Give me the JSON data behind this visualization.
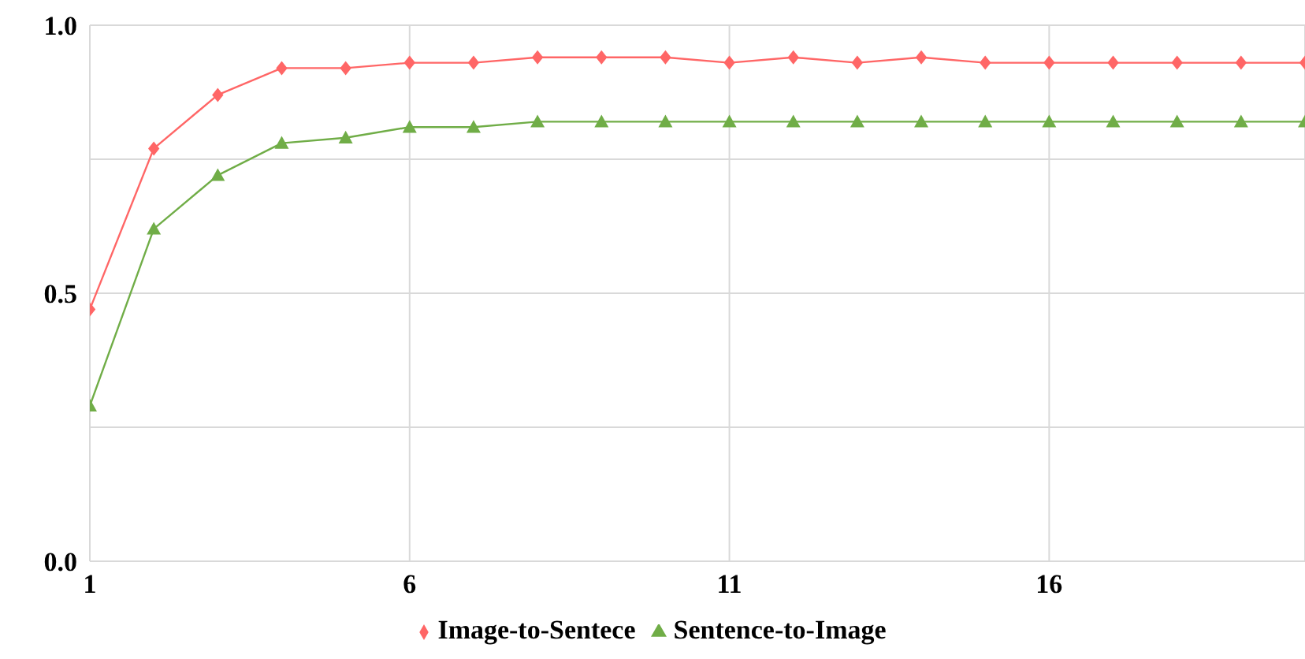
{
  "chart_data": {
    "type": "line",
    "x": [
      1,
      2,
      3,
      4,
      5,
      6,
      7,
      8,
      9,
      10,
      11,
      12,
      13,
      14,
      15,
      16,
      17,
      18,
      19,
      20
    ],
    "series": [
      {
        "name": "Sentence-to-Image",
        "color": "#70ad47",
        "marker": "triangle",
        "values": [
          0.29,
          0.62,
          0.72,
          0.78,
          0.79,
          0.81,
          0.81,
          0.82,
          0.82,
          0.82,
          0.82,
          0.82,
          0.82,
          0.82,
          0.82,
          0.82,
          0.82,
          0.82,
          0.82,
          0.82
        ]
      },
      {
        "name": "Image-to-Sentece",
        "color": "#ff6666",
        "marker": "diamond",
        "values": [
          0.47,
          0.77,
          0.87,
          0.92,
          0.92,
          0.93,
          0.93,
          0.94,
          0.94,
          0.94,
          0.93,
          0.94,
          0.93,
          0.94,
          0.93,
          0.93,
          0.93,
          0.93,
          0.93,
          0.93
        ]
      }
    ],
    "xlim": [
      1,
      20
    ],
    "xticks": [
      1,
      6,
      11,
      16
    ],
    "ylim": [
      0,
      1
    ],
    "yticks": [
      {
        "value": 0,
        "label": "0.0"
      },
      {
        "value": 0.25,
        "label": null
      },
      {
        "value": 0.5,
        "label": "0.5"
      },
      {
        "value": 0.75,
        "label": null
      },
      {
        "value": 1,
        "label": "1.0"
      }
    ],
    "grid": true,
    "legend": "bottom",
    "line_style": "solid"
  }
}
